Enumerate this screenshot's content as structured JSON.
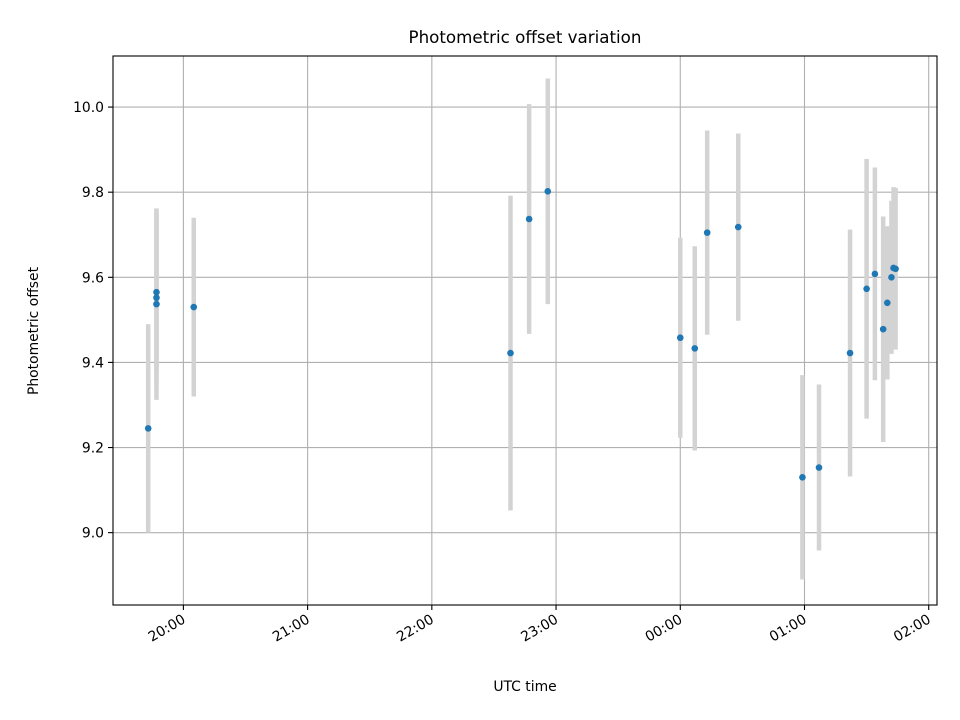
{
  "chart_data": {
    "type": "scatter",
    "title": "Photometric offset variation",
    "xlabel": "UTC time",
    "ylabel": "Photometric offset",
    "x_axis": "time",
    "x_start": "19:26",
    "x_end": "02:04",
    "x_tick_labels": [
      "20:00",
      "21:00",
      "22:00",
      "23:00",
      "00:00",
      "01:00",
      "02:00"
    ],
    "ylim": [
      8.83,
      10.12
    ],
    "y_ticks": [
      9.0,
      9.2,
      9.4,
      9.6,
      9.8,
      10.0
    ],
    "y_tick_labels": [
      "9.0",
      "9.2",
      "9.4",
      "9.6",
      "9.8",
      "10.0"
    ],
    "grid": true,
    "colors": {
      "point": "#1f77b4",
      "errorbar": "#d3d3d3",
      "grid": "#b0b0b0"
    },
    "points": [
      {
        "x": "19:43",
        "y": 9.245,
        "err": 0.245
      },
      {
        "x": "19:47",
        "y": 9.565,
        "err": 0.185
      },
      {
        "x": "19:47",
        "y": 9.552,
        "err": 0.205
      },
      {
        "x": "19:47",
        "y": 9.537,
        "err": 0.225
      },
      {
        "x": "20:05",
        "y": 9.53,
        "err": 0.21
      },
      {
        "x": "22:38",
        "y": 9.422,
        "err": 0.37
      },
      {
        "x": "22:47",
        "y": 9.737,
        "err": 0.27
      },
      {
        "x": "22:56",
        "y": 9.802,
        "err": 0.265
      },
      {
        "x": "00:00",
        "y": 9.458,
        "err": 0.235
      },
      {
        "x": "00:07",
        "y": 9.433,
        "err": 0.24
      },
      {
        "x": "00:13",
        "y": 9.705,
        "err": 0.24
      },
      {
        "x": "00:28",
        "y": 9.718,
        "err": 0.22
      },
      {
        "x": "00:59",
        "y": 9.13,
        "err": 0.24
      },
      {
        "x": "01:07",
        "y": 9.153,
        "err": 0.195
      },
      {
        "x": "01:22",
        "y": 9.422,
        "err": 0.29
      },
      {
        "x": "01:30",
        "y": 9.573,
        "err": 0.305
      },
      {
        "x": "01:34",
        "y": 9.608,
        "err": 0.25
      },
      {
        "x": "01:38",
        "y": 9.478,
        "err": 0.265
      },
      {
        "x": "01:40",
        "y": 9.54,
        "err": 0.18
      },
      {
        "x": "01:42",
        "y": 9.6,
        "err": 0.18
      },
      {
        "x": "01:43",
        "y": 9.622,
        "err": 0.19
      },
      {
        "x": "01:44",
        "y": 9.62,
        "err": 0.19
      }
    ]
  }
}
